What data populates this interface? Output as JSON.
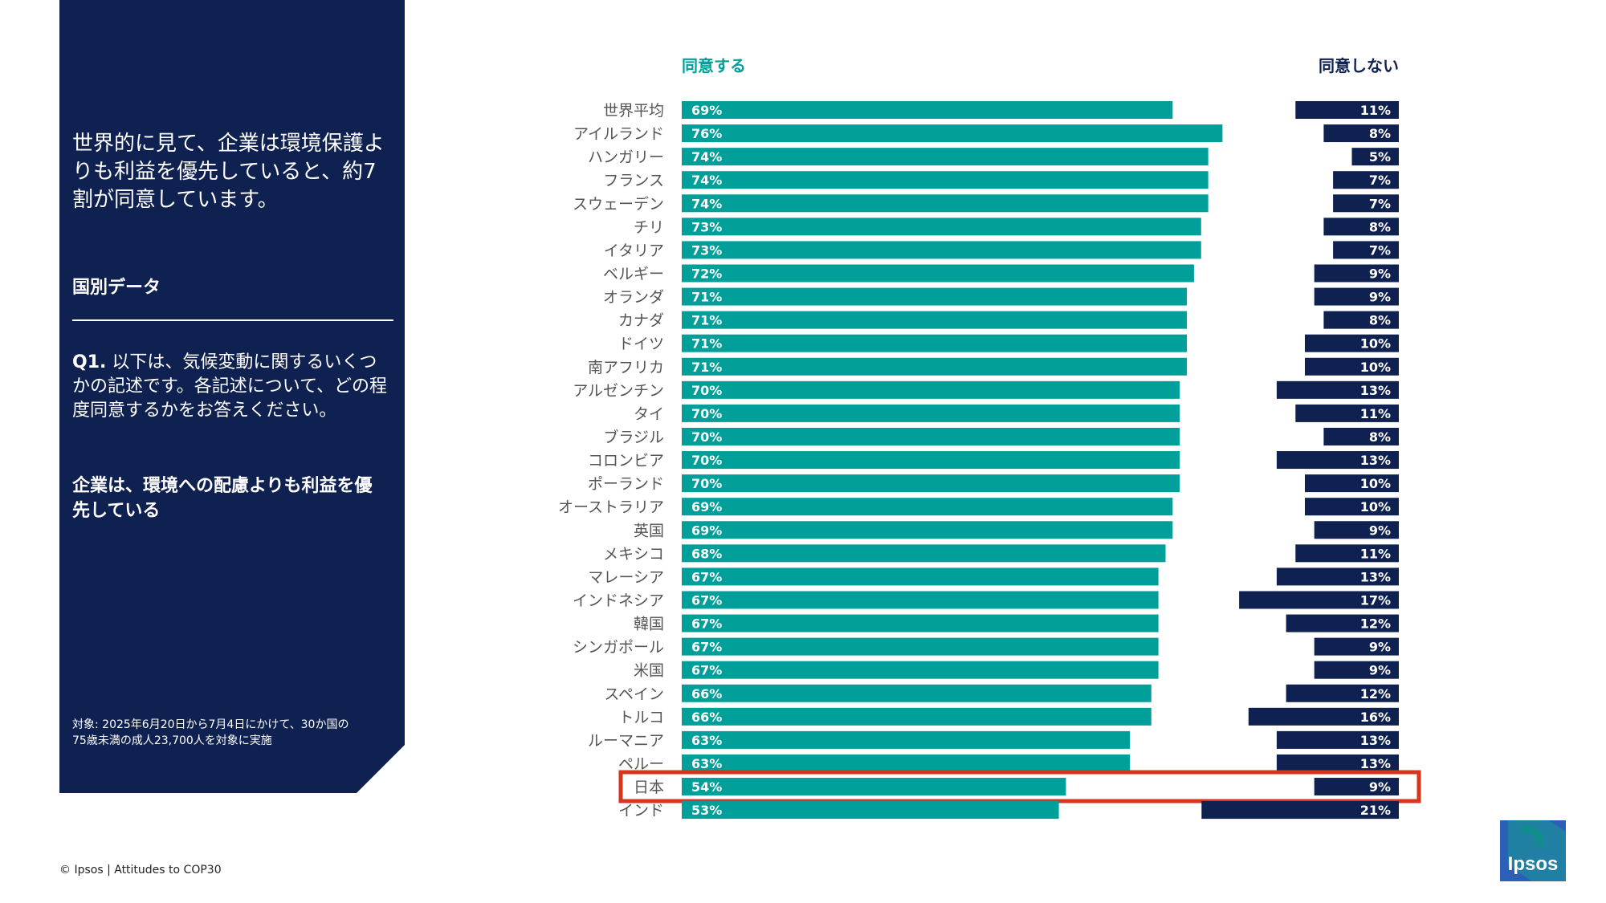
{
  "left_panel": {
    "headline": "世界的に見て、企業は環境保護よりも利益を優先していると、約7割が同意しています。",
    "section_title": "国別データ",
    "question_number": "Q1.",
    "question_text": " 以下は、気候変動に関するいくつかの記述です。各記述について、どの程度同意するかをお答えください。",
    "statement": "企業は、環境への配慮よりも利益を優先している",
    "sample_note": "対象: 2025年6月20日から7月4日にかけて、30か国の75歳未満の成人23,700人を対象に実施"
  },
  "footer": {
    "text": "© Ipsos | Attitudes to COP30"
  },
  "logo": {
    "text": "Ipsos"
  },
  "colors": {
    "agree": "#009f9a",
    "disagree": "#0f2150",
    "highlight": "#d9341e",
    "panel": "#0f2150"
  },
  "chart_data": {
    "type": "bar",
    "series": [
      {
        "name": "同意する",
        "values": [
          69,
          76,
          74,
          74,
          74,
          73,
          73,
          72,
          71,
          71,
          71,
          71,
          70,
          70,
          70,
          70,
          70,
          69,
          69,
          68,
          67,
          67,
          67,
          67,
          67,
          66,
          66,
          63,
          63,
          54,
          53
        ]
      },
      {
        "name": "同意しない",
        "values": [
          11,
          8,
          5,
          7,
          7,
          8,
          7,
          9,
          9,
          8,
          10,
          10,
          13,
          11,
          8,
          13,
          10,
          10,
          9,
          11,
          13,
          17,
          12,
          9,
          9,
          12,
          16,
          13,
          13,
          9,
          21
        ]
      }
    ],
    "categories": [
      "世界平均",
      "アイルランド",
      "ハンガリー",
      "フランス",
      "スウェーデン",
      "チリ",
      "イタリア",
      "ベルギー",
      "オランダ",
      "カナダ",
      "ドイツ",
      "南アフリカ",
      "アルゼンチン",
      "タイ",
      "ブラジル",
      "コロンビア",
      "ポーランド",
      "オーストラリア",
      "英国",
      "メキシコ",
      "マレーシア",
      "インドネシア",
      "韓国",
      "シンガポール",
      "米国",
      "スペイン",
      "トルコ",
      "ルーマニア",
      "ペルー",
      "日本",
      "インド"
    ],
    "highlight_category": "日本",
    "value_suffix": "%"
  }
}
